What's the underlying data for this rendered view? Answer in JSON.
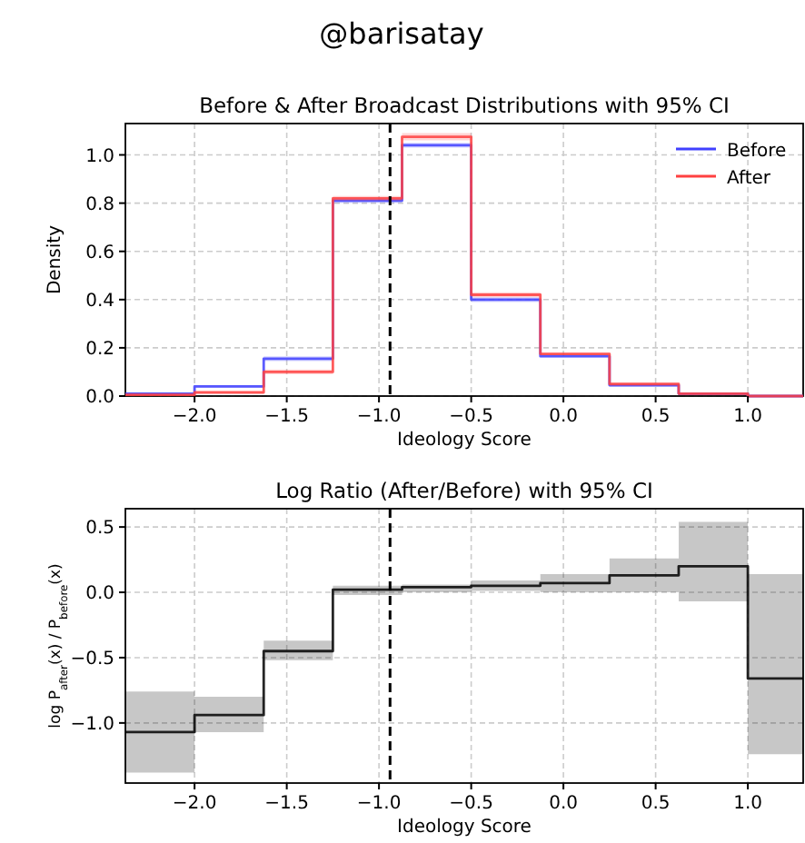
{
  "chart_data": [
    {
      "type": "step",
      "title": "Before & After Broadcast Distributions with 95% CI",
      "xlabel": "Ideology Score",
      "ylabel": "Density",
      "annotations": [
        "@barisatay"
      ],
      "x": [
        -2.375,
        -2.0,
        -1.625,
        -1.25,
        -0.875,
        -0.5,
        -0.125,
        0.25,
        0.625,
        1.0,
        1.3
      ],
      "series": [
        {
          "name": "Before",
          "color": "#4040ff",
          "values": [
            0.01,
            0.04,
            0.155,
            0.81,
            1.04,
            0.4,
            0.165,
            0.045,
            0.01,
            0.0,
            0.0
          ],
          "lower": [
            0.005,
            0.035,
            0.145,
            0.8,
            1.03,
            0.39,
            0.16,
            0.04,
            0.005,
            0.0,
            0.0
          ],
          "upper": [
            0.015,
            0.045,
            0.165,
            0.82,
            1.05,
            0.41,
            0.17,
            0.05,
            0.015,
            0.0,
            0.0
          ]
        },
        {
          "name": "After",
          "color": "#ff4040",
          "values": [
            0.005,
            0.015,
            0.1,
            0.82,
            1.075,
            0.42,
            0.175,
            0.05,
            0.01,
            0.0,
            0.0
          ],
          "lower": [
            0.0,
            0.01,
            0.09,
            0.81,
            1.06,
            0.41,
            0.17,
            0.045,
            0.005,
            0.0,
            0.0
          ],
          "upper": [
            0.01,
            0.02,
            0.11,
            0.83,
            1.09,
            0.43,
            0.18,
            0.055,
            0.015,
            0.0,
            0.0
          ]
        }
      ],
      "xlim": [
        -2.375,
        1.3
      ],
      "ylim": [
        0,
        1.13
      ],
      "xticks": [
        {
          "value": -2,
          "label": "−2.0"
        },
        {
          "value": -1.5,
          "label": "−1.5"
        },
        {
          "value": -1,
          "label": "−1.0"
        },
        {
          "value": -0.5,
          "label": "−0.5"
        },
        {
          "value": 0,
          "label": "0.0"
        },
        {
          "value": 0.5,
          "label": "0.5"
        },
        {
          "value": 1,
          "label": "1.0"
        }
      ],
      "yticks": [
        {
          "value": 0,
          "label": "0.0"
        },
        {
          "value": 0.2,
          "label": "0.2"
        },
        {
          "value": 0.4,
          "label": "0.4"
        },
        {
          "value": 0.6,
          "label": "0.6"
        },
        {
          "value": 0.8,
          "label": "0.8"
        },
        {
          "value": 1,
          "label": "1.0"
        }
      ],
      "ref_lines": [
        {
          "axis": "x",
          "value": -0.94,
          "color": "#000000",
          "line_style": "dashed"
        }
      ],
      "grid": true,
      "legend": "top right",
      "line_style": "solid"
    },
    {
      "type": "step",
      "title": "Log Ratio (After/Before) with 95% CI",
      "xlabel": "Ideology Score",
      "ylabel": "log P$_{after}$(x) / P$_{before}$(x)",
      "x": [
        -2.375,
        -2.0,
        -1.625,
        -1.25,
        -0.875,
        -0.5,
        -0.125,
        0.25,
        0.625,
        1.0,
        1.3
      ],
      "series": [
        {
          "color": "#000000",
          "values": [
            -1.07,
            -0.94,
            -0.45,
            0.02,
            0.04,
            0.05,
            0.07,
            0.13,
            0.2,
            -0.66,
            -0.66
          ],
          "lower": [
            -1.38,
            -1.07,
            -0.52,
            -0.02,
            0.0,
            0.01,
            0.0,
            0.0,
            -0.07,
            -1.24,
            -1.24
          ],
          "upper": [
            -0.76,
            -0.8,
            -0.37,
            0.05,
            0.06,
            0.09,
            0.14,
            0.26,
            0.54,
            0.14,
            0.14
          ]
        }
      ],
      "xlim": [
        -2.375,
        1.3
      ],
      "ylim": [
        -1.46,
        0.64
      ],
      "xticks": [
        {
          "value": -2,
          "label": "−2.0"
        },
        {
          "value": -1.5,
          "label": "−1.5"
        },
        {
          "value": -1,
          "label": "−1.0"
        },
        {
          "value": -0.5,
          "label": "−0.5"
        },
        {
          "value": 0,
          "label": "0.0"
        },
        {
          "value": 0.5,
          "label": "0.5"
        },
        {
          "value": 1,
          "label": "1.0"
        }
      ],
      "yticks": [
        {
          "value": -1,
          "label": "−1.0"
        },
        {
          "value": -0.5,
          "label": "−0.5"
        },
        {
          "value": 0,
          "label": "0.0"
        },
        {
          "value": 0.5,
          "label": "0.5"
        }
      ],
      "ref_lines": [
        {
          "axis": "x",
          "value": -0.94,
          "color": "#000000",
          "line_style": "dashed"
        }
      ],
      "grid": true,
      "line_style": "solid"
    }
  ]
}
